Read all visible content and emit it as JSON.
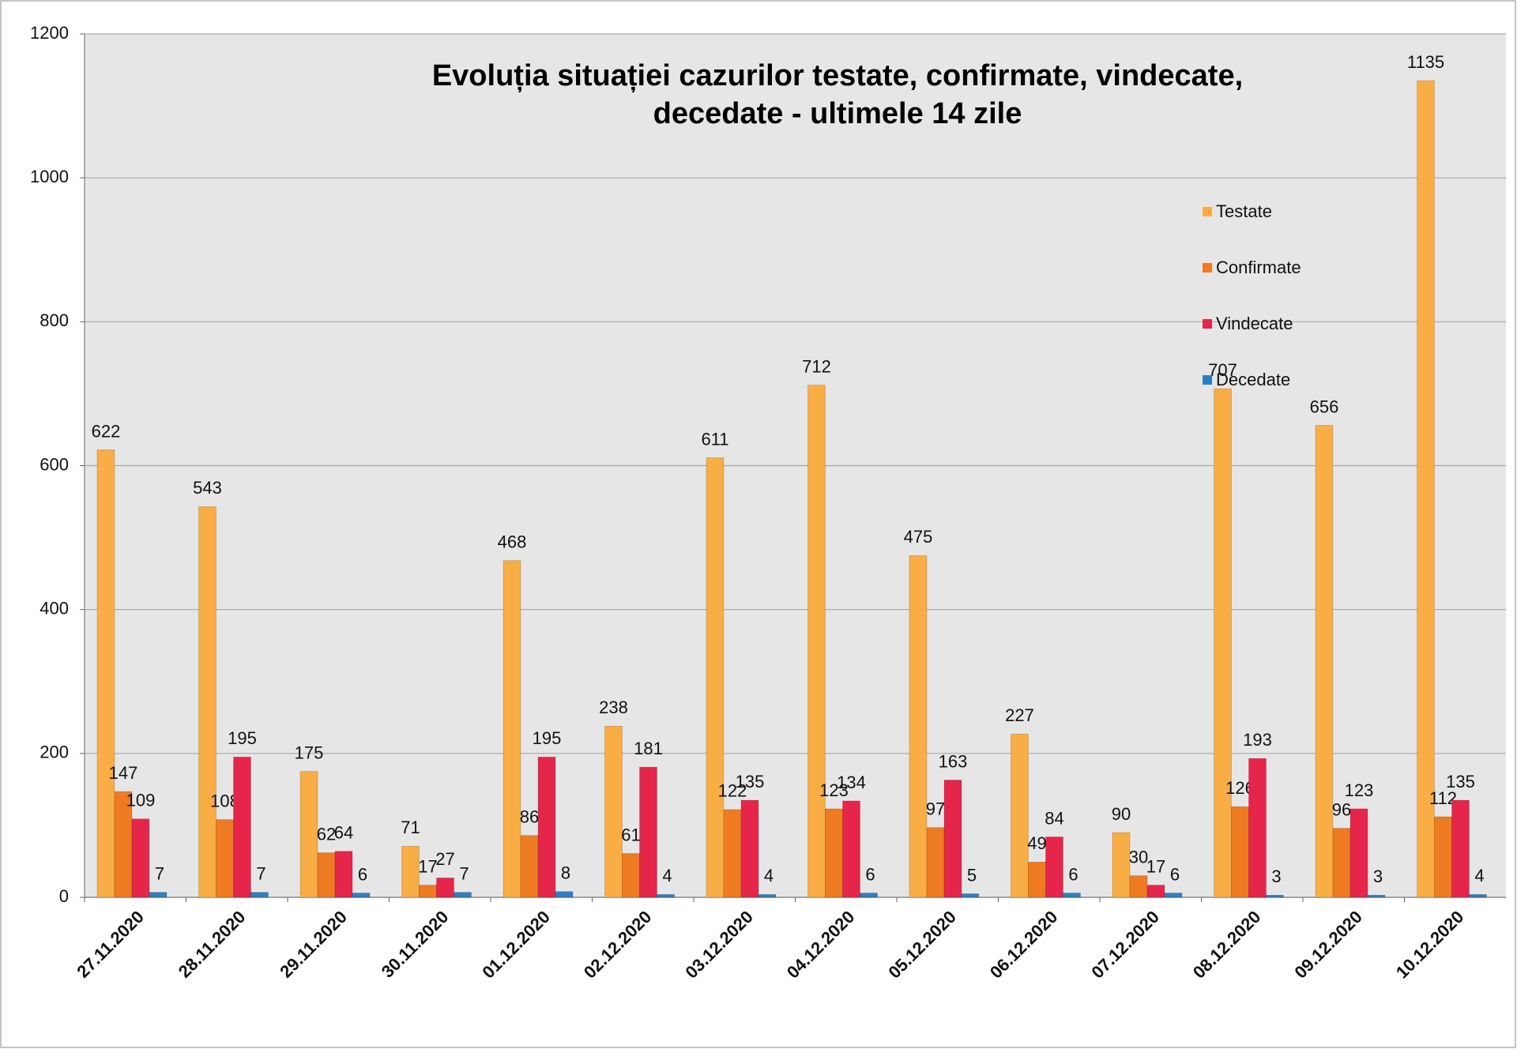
{
  "chart_data": {
    "type": "bar",
    "title": "Evoluția situației cazurilor testate, confirmate, vindecate, decedate -  ultimele 14 zile",
    "categories": [
      "27.11.2020",
      "28.11.2020",
      "29.11.2020",
      "30.11.2020",
      "01.12.2020",
      "02.12.2020",
      "03.12.2020",
      "04.12.2020",
      "05.12.2020",
      "06.12.2020",
      "07.12.2020",
      "08.12.2020",
      "09.12.2020",
      "10.12.2020"
    ],
    "series": [
      {
        "name": "Testate",
        "color": "#f9ad45",
        "values": [
          622,
          543,
          175,
          71,
          468,
          238,
          611,
          712,
          475,
          227,
          90,
          707,
          656,
          1135
        ]
      },
      {
        "name": "Confirmate",
        "color": "#ee7b22",
        "values": [
          147,
          108,
          62,
          17,
          86,
          61,
          122,
          123,
          97,
          49,
          30,
          126,
          96,
          112
        ]
      },
      {
        "name": "Vindecate",
        "color": "#e5264a",
        "values": [
          109,
          195,
          64,
          27,
          195,
          181,
          135,
          134,
          163,
          84,
          17,
          193,
          123,
          135
        ]
      },
      {
        "name": "Decedate",
        "color": "#2f7ec2",
        "values": [
          7,
          7,
          6,
          7,
          8,
          4,
          4,
          6,
          5,
          6,
          6,
          3,
          3,
          4
        ]
      }
    ],
    "ylim": [
      0,
      1200
    ],
    "yticks": [
      0,
      200,
      400,
      600,
      800,
      1000,
      1200
    ],
    "grid": true,
    "legend": "right"
  }
}
